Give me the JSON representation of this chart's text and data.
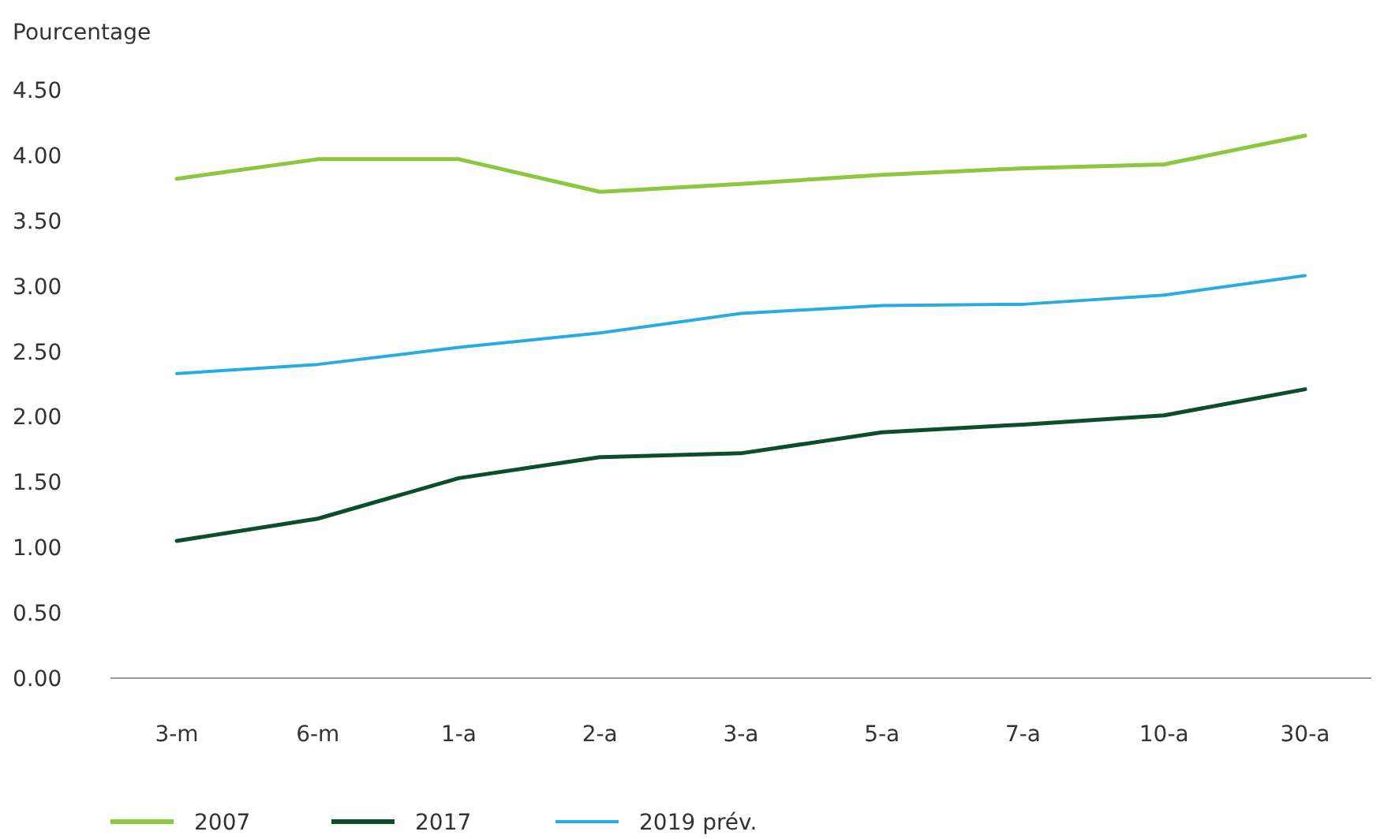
{
  "chart_data": {
    "type": "line",
    "ylabel": "Pourcentage",
    "categories": [
      "3-m",
      "6-m",
      "1-a",
      "2-a",
      "3-a",
      "5-a",
      "7-a",
      "10-a",
      "30-a"
    ],
    "series": [
      {
        "name": "2007",
        "color": "#8dc63f",
        "values": [
          3.82,
          3.97,
          3.97,
          3.72,
          3.78,
          3.85,
          3.9,
          3.93,
          4.15
        ]
      },
      {
        "name": "2017",
        "color": "#0b4d2c",
        "values": [
          1.05,
          1.22,
          1.53,
          1.69,
          1.72,
          1.88,
          1.94,
          2.01,
          2.21
        ]
      },
      {
        "name": "2019 prév.",
        "color": "#29aae1",
        "values": [
          2.33,
          2.4,
          2.53,
          2.64,
          2.79,
          2.85,
          2.86,
          2.93,
          3.08
        ]
      }
    ],
    "ylim": [
      0,
      4.5
    ],
    "yticks": [
      {
        "value": 0,
        "label": "0.00"
      },
      {
        "value": 0.5,
        "label": "0.50"
      },
      {
        "value": 1,
        "label": "1.00"
      },
      {
        "value": 1.5,
        "label": "1.50"
      },
      {
        "value": 2,
        "label": "2.00"
      },
      {
        "value": 2.5,
        "label": "2.50"
      },
      {
        "value": 3,
        "label": "3.00"
      },
      {
        "value": 3.5,
        "label": "3.50"
      },
      {
        "value": 4,
        "label": "4.00"
      },
      {
        "value": 4.5,
        "label": "4.50"
      }
    ],
    "grid": false,
    "legend": "bottom left",
    "marker": "none",
    "line_style": "solid"
  }
}
